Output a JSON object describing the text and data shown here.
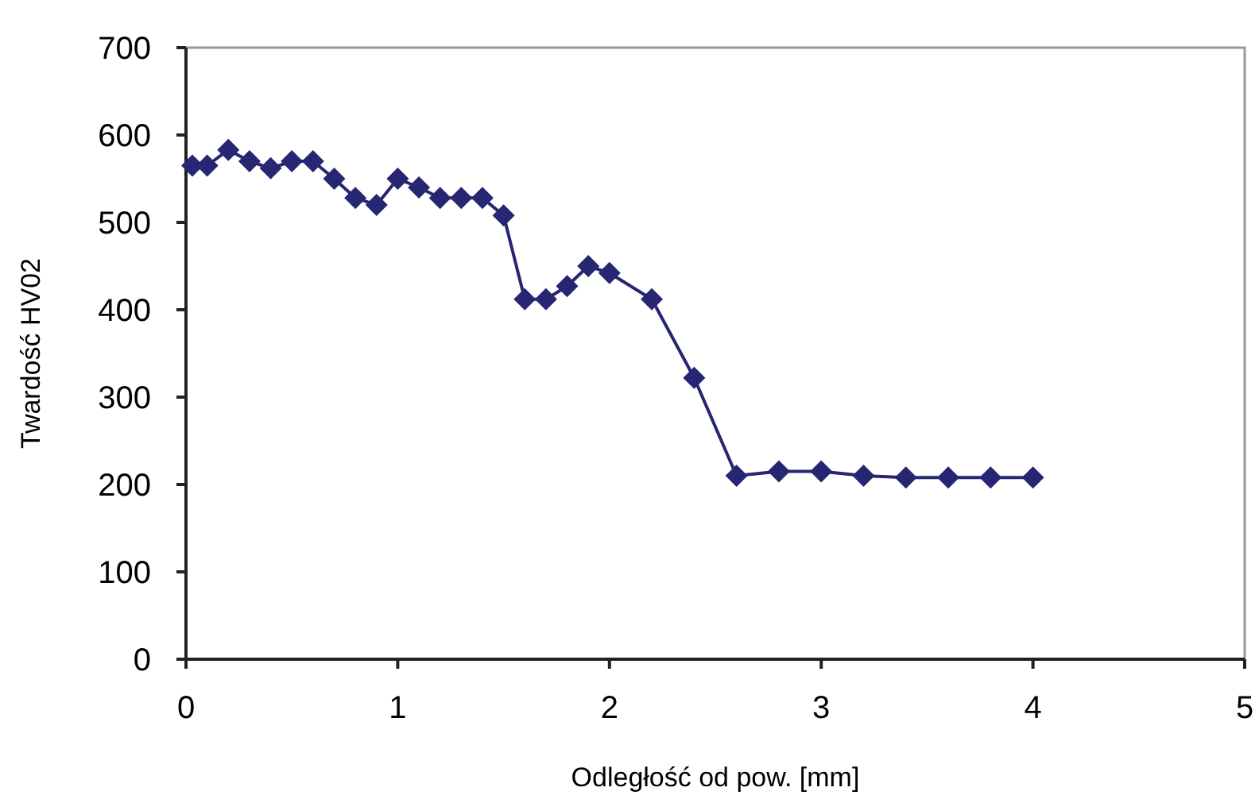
{
  "chart_data": {
    "type": "line",
    "xlabel": "Odległość od pow. [mm]",
    "ylabel": "Twardość HV02",
    "x": [
      0.03,
      0.1,
      0.2,
      0.3,
      0.4,
      0.5,
      0.6,
      0.7,
      0.8,
      0.9,
      1.0,
      1.1,
      1.2,
      1.3,
      1.4,
      1.5,
      1.6,
      1.7,
      1.8,
      1.9,
      2.0,
      2.2,
      2.4,
      2.6,
      2.8,
      3.0,
      3.2,
      3.4,
      3.6,
      3.8,
      4.0
    ],
    "series": [
      {
        "color": "#262673",
        "values": [
          565,
          565,
          583,
          570,
          562,
          570,
          570,
          550,
          528,
          520,
          550,
          540,
          528,
          528,
          528,
          508,
          412,
          412,
          427,
          450,
          442,
          412,
          322,
          210,
          215,
          215,
          210,
          208,
          208,
          208,
          208
        ]
      }
    ],
    "xlim": [
      0,
      5
    ],
    "xticks": [
      0,
      1,
      2,
      3,
      4,
      5
    ],
    "ylim": [
      0,
      700
    ],
    "yticks": [
      0,
      100,
      200,
      300,
      400,
      500,
      600,
      700
    ],
    "marker": "diamond",
    "line_style": "solid"
  }
}
